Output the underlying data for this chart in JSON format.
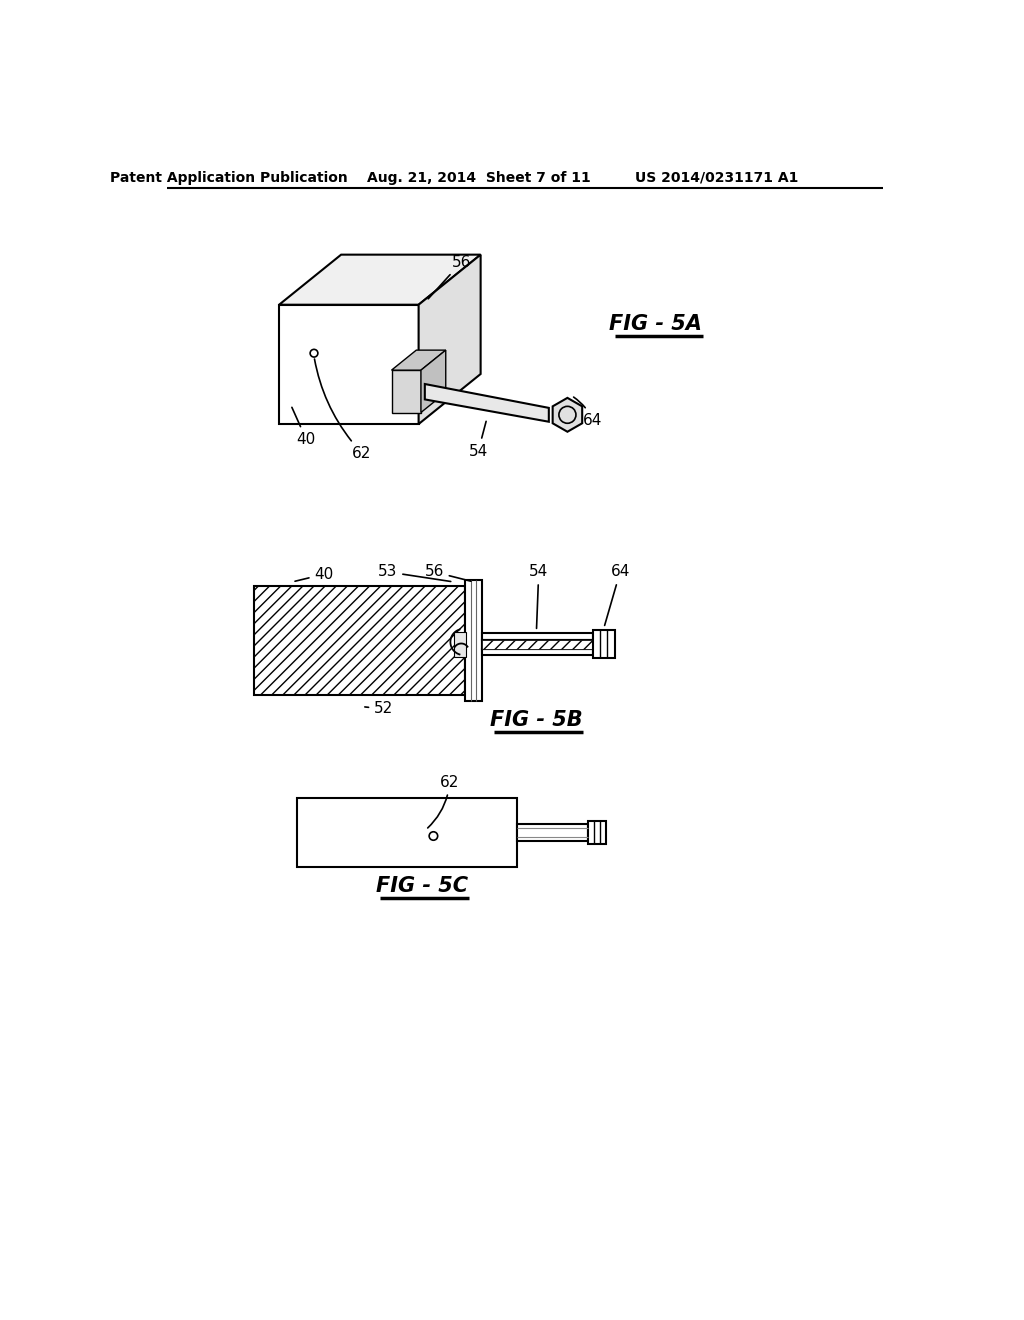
{
  "background_color": "#ffffff",
  "header_left": "Patent Application Publication",
  "header_center": "Aug. 21, 2014  Sheet 7 of 11",
  "header_right": "US 2014/0231171 A1",
  "fig5a_label": "FIG - 5A",
  "fig5b_label": "FIG - 5B",
  "fig5c_label": "FIG - 5C",
  "line_color": "#000000",
  "white": "#ffffff",
  "light_gray": "#f0f0f0",
  "mid_gray": "#d8d8d8",
  "dark_gray": "#b0b0b0"
}
